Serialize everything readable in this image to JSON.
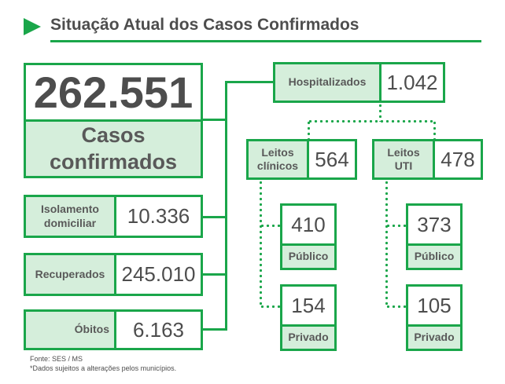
{
  "header": {
    "title": "Situação Atual dos Casos Confirmados"
  },
  "total": {
    "value": "262.551",
    "label_line1": "Casos",
    "label_line2": "confirmados"
  },
  "left_items": [
    {
      "label_line1": "Isolamento",
      "label_line2": "domiciliar",
      "value": "10.336"
    },
    {
      "label_line1": "Recuperados",
      "label_line2": "",
      "value": "245.010"
    },
    {
      "label_line1": "Óbitos",
      "label_line2": "",
      "value": "6.163"
    }
  ],
  "hospitalizados": {
    "label": "Hospitalizados",
    "value": "1.042"
  },
  "leitos_clinicos": {
    "label_line1": "Leitos",
    "label_line2": "clínicos",
    "value": "564",
    "publico": {
      "value": "410",
      "label": "Público"
    },
    "privado": {
      "value": "154",
      "label": "Privado"
    }
  },
  "leitos_uti": {
    "label_line1": "Leitos",
    "label_line2": "UTI",
    "value": "478",
    "publico": {
      "value": "373",
      "label": "Público"
    },
    "privado": {
      "value": "105",
      "label": "Privado"
    }
  },
  "footer": {
    "source": "Fonte: SES / MS",
    "note": "*Dados sujeitos a alterações pelos municípios."
  },
  "colors": {
    "accent": "#1aa64a",
    "fill": "#d5eedb",
    "text": "#4d4d4d"
  }
}
